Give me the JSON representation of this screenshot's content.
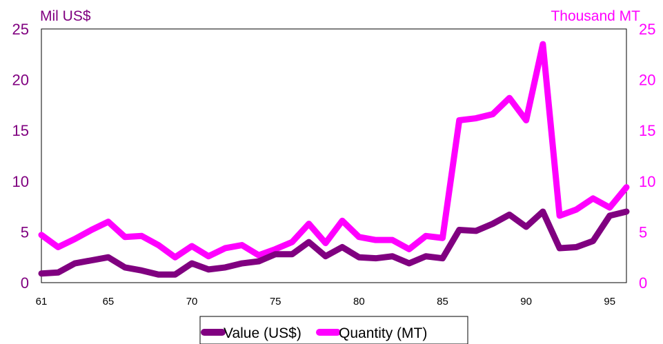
{
  "chart_data": {
    "type": "line",
    "y_left_label": "Mil US$",
    "y_right_label": "Thousand MT",
    "y_left_lim": [
      0,
      25
    ],
    "y_right_lim": [
      0,
      25
    ],
    "y_left_ticks": [
      "0",
      "5",
      "10",
      "15",
      "20",
      "25"
    ],
    "y_right_ticks": [
      "0",
      "5",
      "10",
      "15",
      "20",
      "25"
    ],
    "x_range": [
      61,
      96
    ],
    "x_tick_values": [
      61,
      65,
      70,
      75,
      80,
      85,
      90,
      95
    ],
    "x_tick_labels": [
      "61",
      "65",
      "70",
      "75",
      "80",
      "85",
      "90",
      "95"
    ],
    "x": [
      61,
      62,
      63,
      64,
      65,
      66,
      67,
      68,
      69,
      70,
      71,
      72,
      73,
      74,
      75,
      76,
      77,
      78,
      79,
      80,
      81,
      82,
      83,
      84,
      85,
      86,
      87,
      88,
      89,
      90,
      91,
      92,
      93,
      94,
      95,
      96
    ],
    "series": [
      {
        "name": "Value (US$)",
        "axis": "left",
        "color": "#800080",
        "values": [
          0.9,
          1.0,
          1.9,
          2.2,
          2.5,
          1.5,
          1.2,
          0.8,
          0.8,
          1.9,
          1.3,
          1.5,
          1.9,
          2.1,
          2.8,
          2.8,
          4.0,
          2.6,
          3.5,
          2.5,
          2.4,
          2.6,
          1.9,
          2.6,
          2.4,
          5.2,
          5.1,
          5.8,
          6.7,
          5.5,
          7.0,
          3.4,
          3.5,
          4.1,
          6.6,
          7.0
        ]
      },
      {
        "name": "Quantity (MT)",
        "axis": "right",
        "color": "#ff00ff",
        "values": [
          4.7,
          3.5,
          4.3,
          5.2,
          6.0,
          4.5,
          4.6,
          3.7,
          2.5,
          3.6,
          2.6,
          3.4,
          3.7,
          2.7,
          3.3,
          4.0,
          5.8,
          3.9,
          6.1,
          4.5,
          4.2,
          4.2,
          3.3,
          4.6,
          4.4,
          16.0,
          16.2,
          16.6,
          18.2,
          16.0,
          23.5,
          6.6,
          7.2,
          8.3,
          7.4,
          9.4
        ]
      }
    ],
    "legend_position": "bottom"
  }
}
